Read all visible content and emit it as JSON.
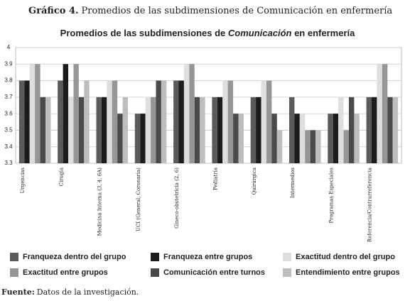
{
  "header": {
    "label": "Gráfico 4.",
    "title": "Promedios de las subdimensiones de Comunicación en enfermería"
  },
  "chart_data": {
    "type": "bar",
    "title": [
      "Promedios de las subdimensiones de ",
      "Comunicación",
      " en enfermería"
    ],
    "categories": [
      "Urgencias",
      "Cirugía",
      "Medicina Interna (3, 4, 6A)",
      "UCI (General, Coronaria)",
      "Gineco-obstetricia (2, 6)",
      "Pediatría",
      "Quirúrgica",
      "Intermedios",
      "Programas Especiales",
      "Referencia/Contrarreferencia"
    ],
    "series": [
      {
        "name": "Franqueza dentro del grupo",
        "color": "#5a5a5a",
        "values": [
          3.8,
          3.8,
          3.7,
          3.6,
          3.8,
          3.7,
          3.7,
          3.7,
          3.6,
          3.7
        ]
      },
      {
        "name": "Franqueza entre grupos",
        "color": "#1c1c1c",
        "values": [
          3.8,
          3.9,
          3.7,
          3.6,
          3.8,
          3.7,
          3.7,
          3.6,
          3.6,
          3.7
        ]
      },
      {
        "name": "Exactitud dentro del grupo",
        "color": "#dedede",
        "values": [
          3.9,
          3.7,
          3.8,
          3.7,
          3.9,
          3.8,
          3.8,
          3.6,
          3.7,
          3.9
        ]
      },
      {
        "name": "Exactitud entre grupos",
        "color": "#969696",
        "values": [
          3.9,
          3.9,
          3.8,
          3.7,
          3.9,
          3.8,
          3.8,
          3.5,
          3.5,
          3.9
        ]
      },
      {
        "name": "Comunicación entre turnos",
        "color": "#4a4a4a",
        "values": [
          3.7,
          3.7,
          3.6,
          3.8,
          3.7,
          3.6,
          3.6,
          3.5,
          3.7,
          3.7
        ]
      },
      {
        "name": "Entendimiento entre grupos",
        "color": "#bdbdbd",
        "values": [
          3.7,
          3.8,
          3.7,
          3.8,
          3.7,
          3.6,
          3.5,
          3.5,
          3.6,
          3.7
        ]
      }
    ],
    "ylim": [
      3.3,
      4
    ],
    "yticks": [
      3.3,
      3.4,
      3.5,
      3.6,
      3.7,
      3.8,
      3.9,
      4
    ],
    "grid": true
  },
  "footer": {
    "label": "Fuente:",
    "text": "Datos de la investigación."
  }
}
